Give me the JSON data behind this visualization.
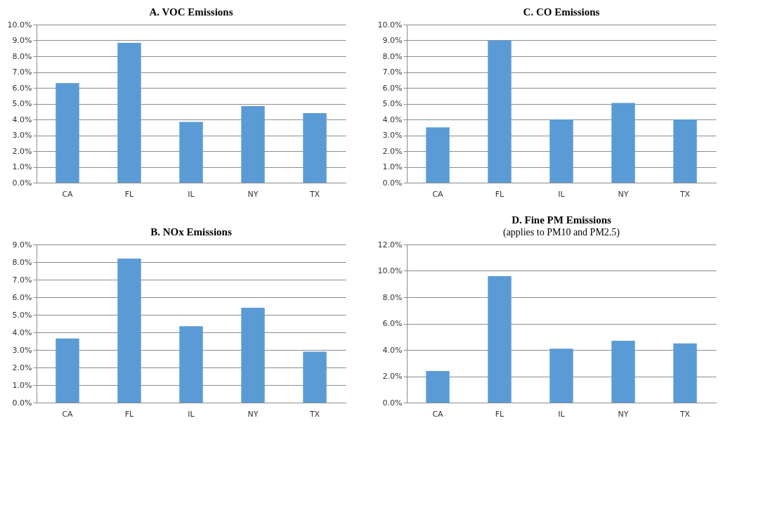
{
  "chart_data": [
    {
      "type": "bar",
      "title": "A. VOC Emissions",
      "categories": [
        "CA",
        "FL",
        "IL",
        "NY",
        "TX"
      ],
      "values": [
        6.3,
        8.85,
        3.85,
        4.85,
        4.4
      ],
      "color": "#5b9bd5",
      "ylim": [
        0,
        10
      ],
      "yticks": [
        {
          "value": 0,
          "label": "0.0%"
        },
        {
          "value": 1,
          "label": "1.0%"
        },
        {
          "value": 2,
          "label": "2.0%"
        },
        {
          "value": 3,
          "label": "3.0%"
        },
        {
          "value": 4,
          "label": "4.0%"
        },
        {
          "value": 5,
          "label": "5.0%"
        },
        {
          "value": 6,
          "label": "6.0%"
        },
        {
          "value": 7,
          "label": "7.0%"
        },
        {
          "value": 8,
          "label": "8.0%"
        },
        {
          "value": 9,
          "label": "9.0%"
        },
        {
          "value": 10,
          "label": "10.0%"
        }
      ],
      "grid": "y"
    },
    {
      "type": "bar",
      "title": "C. CO Emissions",
      "categories": [
        "CA",
        "FL",
        "IL",
        "NY",
        "TX"
      ],
      "values": [
        3.5,
        9.0,
        4.0,
        5.05,
        4.0
      ],
      "color": "#5b9bd5",
      "ylim": [
        0,
        10
      ],
      "yticks": [
        {
          "value": 0,
          "label": "0.0%"
        },
        {
          "value": 1,
          "label": "1.0%"
        },
        {
          "value": 2,
          "label": "2.0%"
        },
        {
          "value": 3,
          "label": "3.0%"
        },
        {
          "value": 4,
          "label": "4.0%"
        },
        {
          "value": 5,
          "label": "5.0%"
        },
        {
          "value": 6,
          "label": "6.0%"
        },
        {
          "value": 7,
          "label": "7.0%"
        },
        {
          "value": 8,
          "label": "8.0%"
        },
        {
          "value": 9,
          "label": "9.0%"
        },
        {
          "value": 10,
          "label": "10.0%"
        }
      ],
      "grid": "y"
    },
    {
      "type": "bar",
      "title": "B. NOx Emissions",
      "categories": [
        "CA",
        "FL",
        "IL",
        "NY",
        "TX"
      ],
      "values": [
        3.65,
        8.2,
        4.35,
        5.4,
        2.9
      ],
      "color": "#5b9bd5",
      "ylim": [
        0,
        9
      ],
      "yticks": [
        {
          "value": 0,
          "label": "0.0%"
        },
        {
          "value": 1,
          "label": "1.0%"
        },
        {
          "value": 2,
          "label": "2.0%"
        },
        {
          "value": 3,
          "label": "3.0%"
        },
        {
          "value": 4,
          "label": "4.0%"
        },
        {
          "value": 5,
          "label": "5.0%"
        },
        {
          "value": 6,
          "label": "6.0%"
        },
        {
          "value": 7,
          "label": "7.0%"
        },
        {
          "value": 8,
          "label": "8.0%"
        },
        {
          "value": 9,
          "label": "9.0%"
        }
      ],
      "grid": "y"
    },
    {
      "type": "bar",
      "title": "D. Fine PM Emissions",
      "subtitle": "(applies to PM10 and PM2.5)",
      "categories": [
        "CA",
        "FL",
        "IL",
        "NY",
        "TX"
      ],
      "values": [
        2.4,
        9.6,
        4.1,
        4.7,
        4.5
      ],
      "color": "#5b9bd5",
      "ylim": [
        0,
        12
      ],
      "yticks": [
        {
          "value": 0,
          "label": "0.0%"
        },
        {
          "value": 2,
          "label": "2.0%"
        },
        {
          "value": 4,
          "label": "4.0%"
        },
        {
          "value": 6,
          "label": "6.0%"
        },
        {
          "value": 8,
          "label": "8.0%"
        },
        {
          "value": 10,
          "label": "10.0%"
        },
        {
          "value": 12,
          "label": "12.0%"
        }
      ],
      "grid": "y"
    }
  ]
}
